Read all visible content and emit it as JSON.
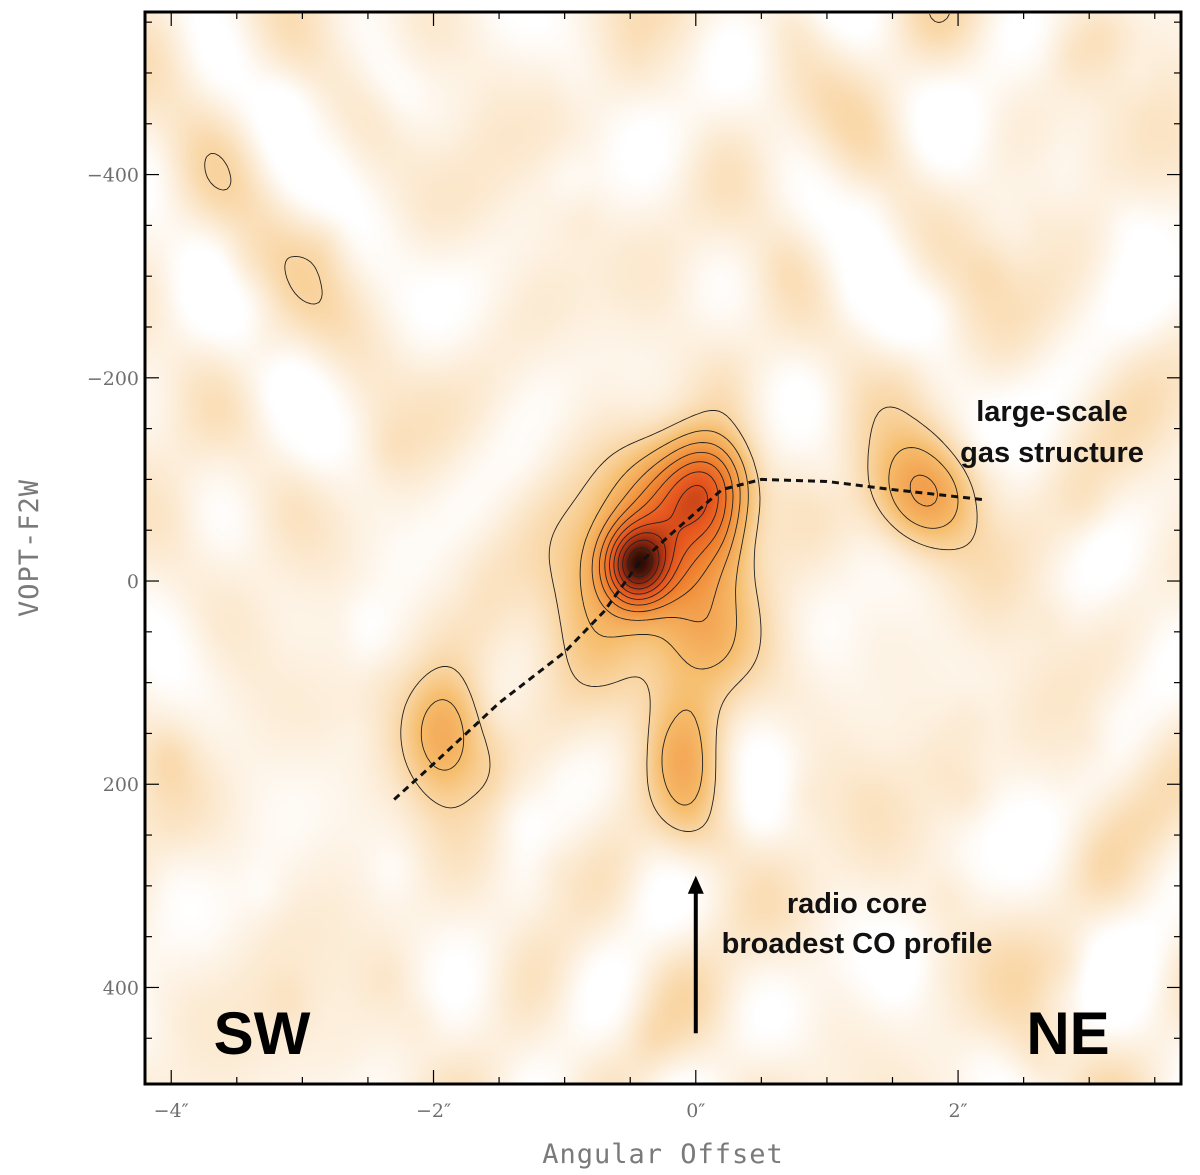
{
  "chart_data": {
    "type": "heatmap",
    "title": "",
    "xlabel": "Angular Offset",
    "ylabel": "VOPT-F2W",
    "xlim": [
      -4.2,
      3.7
    ],
    "ylim": [
      -560,
      495
    ],
    "y_inverted": true,
    "x_ticks": [
      {
        "value": -4,
        "label": "−4″"
      },
      {
        "value": -2,
        "label": "−2″"
      },
      {
        "value": 0,
        "label": "0″"
      },
      {
        "value": 2,
        "label": "2″"
      }
    ],
    "y_ticks": [
      {
        "value": -400,
        "label": "−400"
      },
      {
        "value": -200,
        "label": "−200"
      },
      {
        "value": 0,
        "label": "0"
      },
      {
        "value": 200,
        "label": "200"
      },
      {
        "value": 400,
        "label": "400"
      }
    ],
    "colormap": [
      "#ffffff",
      "#fbe3c0",
      "#f6b35e",
      "#f07a2c",
      "#e4531c",
      "#2a0c05"
    ],
    "emission_peaks": [
      {
        "x": -0.45,
        "y": -15,
        "peak": 1.0,
        "sx": 0.17,
        "sy": 27
      },
      {
        "x": -0.15,
        "y": -65,
        "peak": 0.55,
        "sx": 0.32,
        "sy": 45
      },
      {
        "x": 0.1,
        "y": -95,
        "peak": 0.55,
        "sx": 0.22,
        "sy": 35
      },
      {
        "x": -0.05,
        "y": 40,
        "peak": 0.35,
        "sx": 0.28,
        "sy": 70
      },
      {
        "x": -0.75,
        "y": 10,
        "peak": 0.3,
        "sx": 0.3,
        "sy": 60
      },
      {
        "x": 1.75,
        "y": -85,
        "peak": 0.42,
        "sx": 0.28,
        "sy": 38
      },
      {
        "x": -1.9,
        "y": 150,
        "peak": 0.4,
        "sx": 0.22,
        "sy": 45
      },
      {
        "x": -0.05,
        "y": 200,
        "peak": 0.22,
        "sx": 0.18,
        "sy": 60
      }
    ],
    "dashed_line": [
      {
        "x": -2.3,
        "y": 215
      },
      {
        "x": -2.0,
        "y": 180
      },
      {
        "x": -1.5,
        "y": 120
      },
      {
        "x": -1.0,
        "y": 70
      },
      {
        "x": -0.7,
        "y": 30
      },
      {
        "x": -0.45,
        "y": -15
      },
      {
        "x": -0.2,
        "y": -45
      },
      {
        "x": 0.2,
        "y": -90
      },
      {
        "x": 0.5,
        "y": -100
      },
      {
        "x": 1.0,
        "y": -98
      },
      {
        "x": 1.5,
        "y": -90
      },
      {
        "x": 2.2,
        "y": -80
      }
    ],
    "arrow": {
      "x": 0.0,
      "y_from": 445,
      "y_to": 290
    },
    "annotations": {
      "gas_structure": [
        "large-scale",
        "gas structure"
      ],
      "radio_core": [
        "radio core",
        "broadest CO profile"
      ],
      "left_corner": "SW",
      "right_corner": "NE"
    }
  }
}
